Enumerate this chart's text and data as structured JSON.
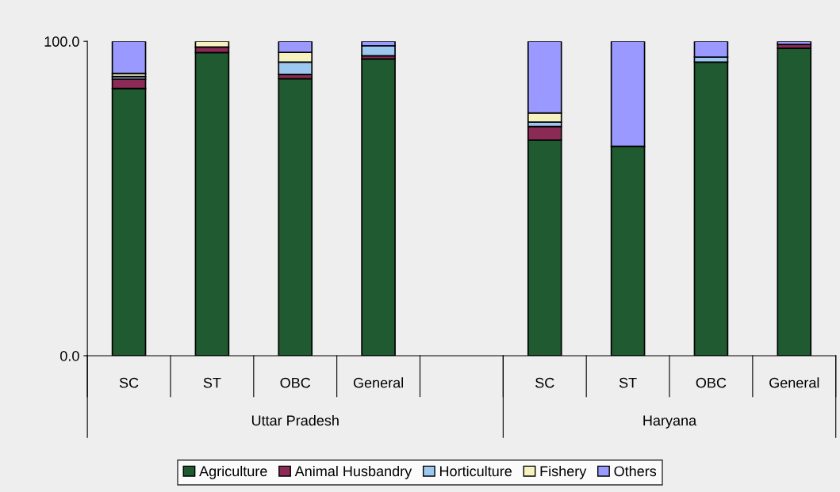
{
  "chart_data": {
    "type": "bar",
    "stacked": true,
    "categories": [
      "SC",
      "ST",
      "OBC",
      "General",
      null,
      "SC",
      "ST",
      "OBC",
      "General"
    ],
    "series": [
      {
        "name": "Agriculture",
        "color": "#1f5a30",
        "values": [
          85.0,
          96.4,
          88.1,
          94.4,
          null,
          68.6,
          66.6,
          93.4,
          97.8
        ]
      },
      {
        "name": "Animal Husbandry",
        "color": "#8b2a55",
        "values": [
          3.0,
          1.8,
          1.4,
          1.0,
          null,
          4.3,
          null,
          null,
          1.2
        ]
      },
      {
        "name": "Horticulture",
        "color": "#9cc8f0",
        "values": [
          0.8,
          null,
          3.9,
          3.2,
          null,
          1.4,
          null,
          1.6,
          null
        ]
      },
      {
        "name": "Fishery",
        "color": "#f5f2c0",
        "values": [
          1.0,
          1.8,
          3.1,
          null,
          null,
          2.9,
          null,
          null,
          null
        ]
      },
      {
        "name": "Others",
        "color": "#9999ff",
        "values": [
          10.2,
          null,
          3.5,
          1.4,
          null,
          22.8,
          33.4,
          5.0,
          1.0
        ]
      }
    ],
    "ylim": [
      0,
      100
    ],
    "yticks": [
      {
        "value": 0,
        "label": "0.0"
      },
      {
        "value": 100,
        "label": "100.0"
      }
    ],
    "annotations": [
      "Uttar Pradesh",
      "Haryana"
    ],
    "grid": false,
    "legend": "bottom"
  }
}
